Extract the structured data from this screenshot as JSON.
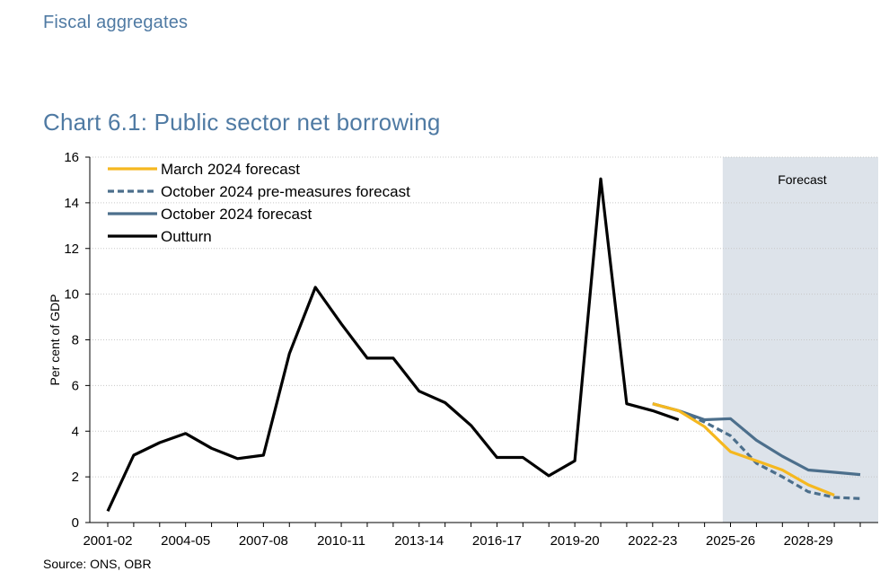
{
  "header": {
    "section": "Fiscal aggregates"
  },
  "chart_data": {
    "type": "line",
    "title": "Chart 6.1: Public sector net borrowing",
    "ylabel": "Per cent of GDP",
    "xlabel": "",
    "ylim": [
      0,
      16
    ],
    "yticks": [
      0,
      2,
      4,
      6,
      8,
      10,
      12,
      14,
      16
    ],
    "x_start_year": 2001,
    "x_end_year": 2030,
    "xtick_labels": [
      "2001-02",
      "2004-05",
      "2007-08",
      "2010-11",
      "2013-14",
      "2016-17",
      "2019-20",
      "2022-23",
      "2025-26",
      "2028-29"
    ],
    "forecast_region": {
      "label": "Forecast",
      "from_year": 2024.7,
      "color": "#dde3ea"
    },
    "legend_position": "top-left",
    "series": [
      {
        "name": "March 2024 forecast",
        "color": "#f5b820",
        "dash": "solid",
        "points": [
          [
            2022,
            5.2
          ],
          [
            2023,
            4.9
          ],
          [
            2024,
            4.2
          ],
          [
            2025,
            3.1
          ],
          [
            2026,
            2.7
          ],
          [
            2027,
            2.3
          ],
          [
            2028,
            1.65
          ],
          [
            2029,
            1.2
          ]
        ]
      },
      {
        "name": "October 2024 pre-measures forecast",
        "color": "#4c6f8c",
        "dash": "dashed",
        "points": [
          [
            2022,
            5.2
          ],
          [
            2023,
            4.9
          ],
          [
            2024,
            4.4
          ],
          [
            2025,
            3.8
          ],
          [
            2026,
            2.6
          ],
          [
            2027,
            2.0
          ],
          [
            2028,
            1.35
          ],
          [
            2029,
            1.1
          ],
          [
            2030,
            1.05
          ]
        ]
      },
      {
        "name": "October 2024 forecast",
        "color": "#4c6f8c",
        "dash": "solid",
        "points": [
          [
            2022,
            5.2
          ],
          [
            2023,
            4.9
          ],
          [
            2024,
            4.5
          ],
          [
            2025,
            4.55
          ],
          [
            2026,
            3.6
          ],
          [
            2027,
            2.9
          ],
          [
            2028,
            2.3
          ],
          [
            2029,
            2.2
          ],
          [
            2030,
            2.1
          ]
        ]
      },
      {
        "name": "Outturn",
        "color": "#000000",
        "dash": "solid",
        "points": [
          [
            2001,
            0.5
          ],
          [
            2002,
            2.95
          ],
          [
            2003,
            3.5
          ],
          [
            2004,
            3.9
          ],
          [
            2005,
            3.25
          ],
          [
            2006,
            2.8
          ],
          [
            2007,
            2.95
          ],
          [
            2008,
            7.4
          ],
          [
            2009,
            10.3
          ],
          [
            2010,
            8.7
          ],
          [
            2011,
            7.2
          ],
          [
            2012,
            7.2
          ],
          [
            2013,
            5.75
          ],
          [
            2014,
            5.25
          ],
          [
            2015,
            4.25
          ],
          [
            2016,
            2.85
          ],
          [
            2017,
            2.85
          ],
          [
            2018,
            2.05
          ],
          [
            2019,
            2.7
          ],
          [
            2020,
            15.05
          ],
          [
            2021,
            5.2
          ],
          [
            2022,
            4.9
          ],
          [
            2023,
            4.5
          ]
        ]
      }
    ]
  },
  "footer": {
    "source": "Source: ONS, OBR"
  }
}
